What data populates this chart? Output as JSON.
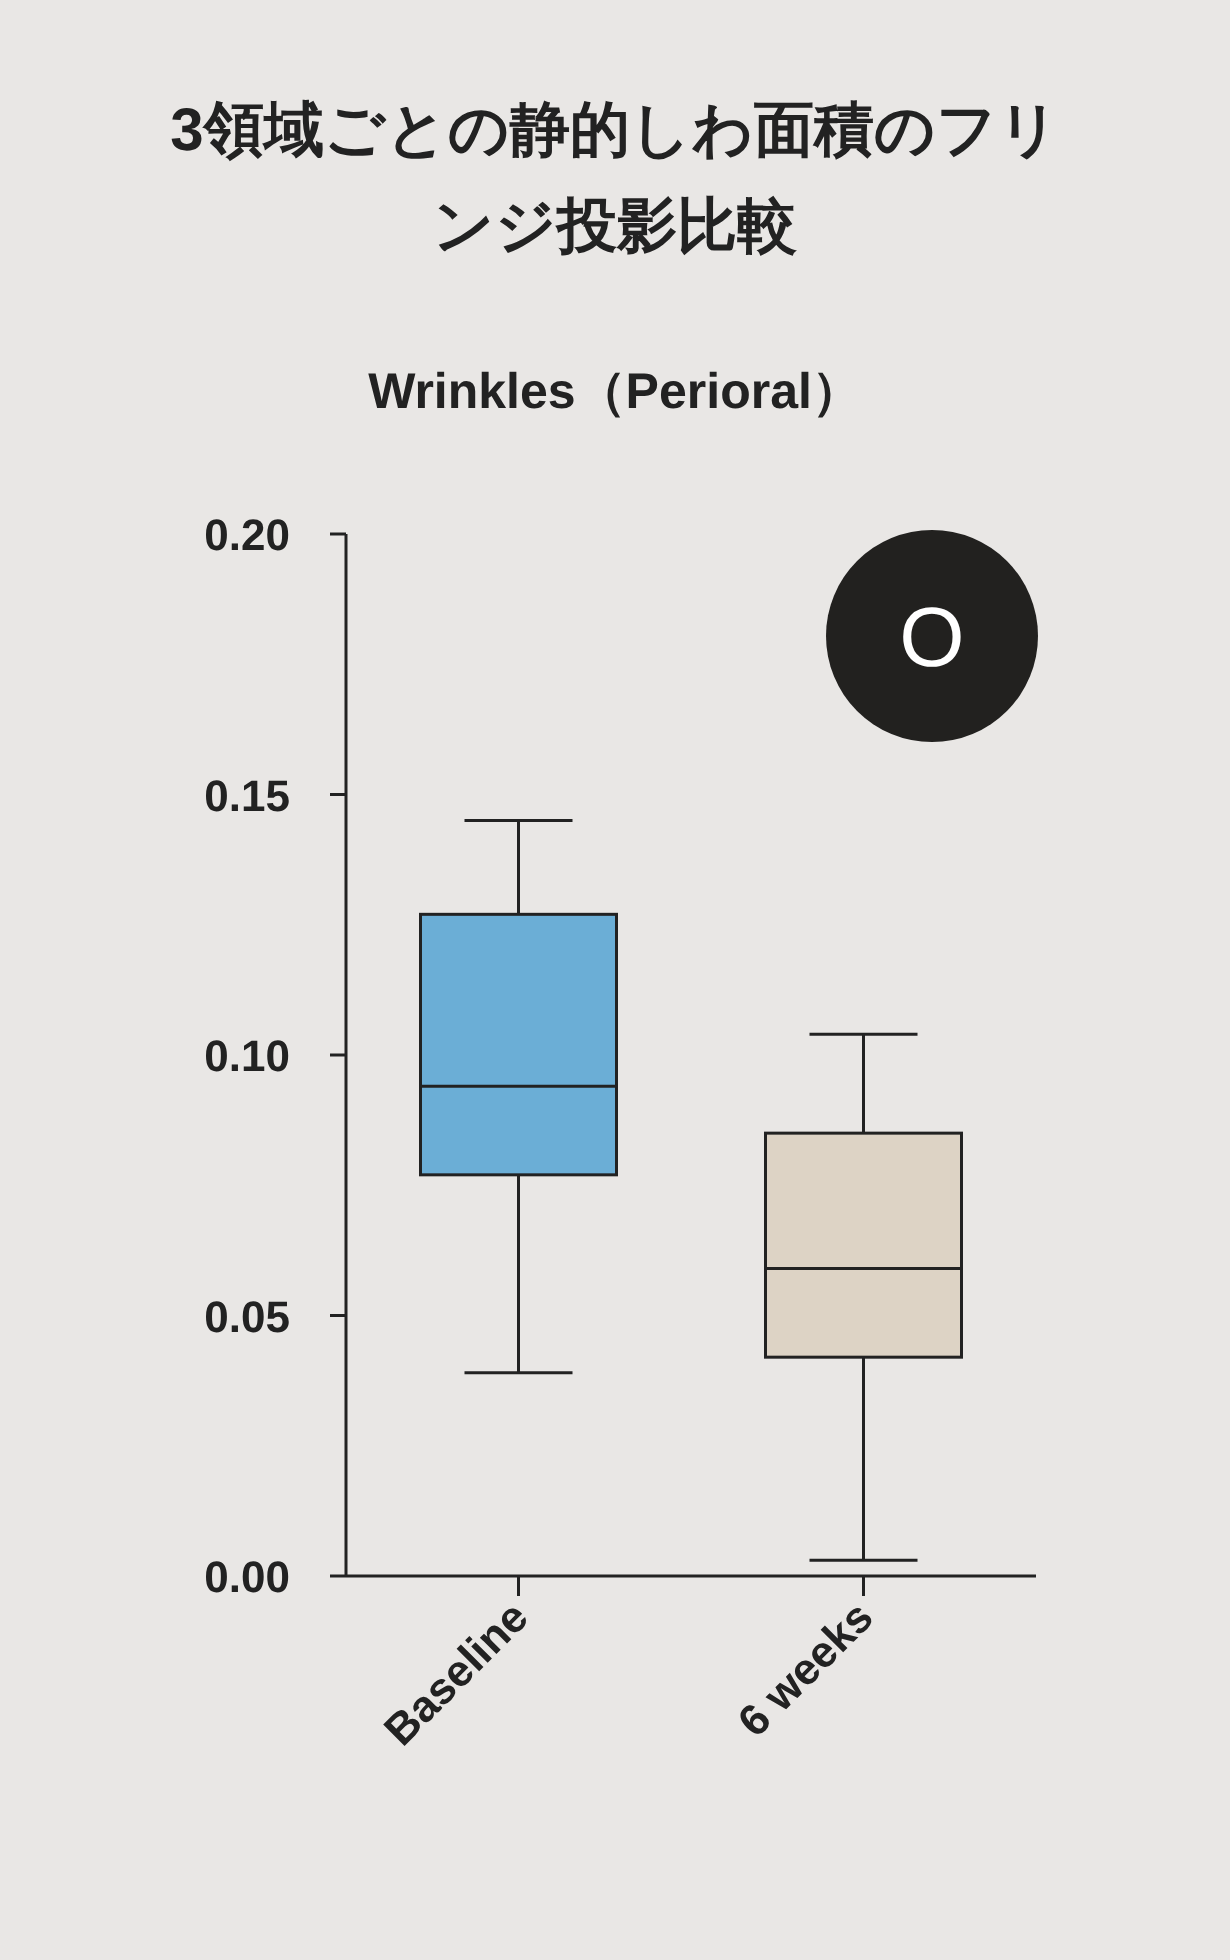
{
  "chart_data": {
    "type": "box",
    "title": "3領域ごとの静的しわ面積のフリンジ投影比較",
    "subtitle": "Wrinkles（Perioral）",
    "categories": [
      "Baseline",
      "6 weeks"
    ],
    "colors": [
      "#6baed6",
      "#ddd3c5"
    ],
    "boxes": [
      {
        "low": 0.039,
        "q1": 0.077,
        "median": 0.094,
        "q3": 0.127,
        "high": 0.145
      },
      {
        "low": 0.003,
        "q1": 0.042,
        "median": 0.059,
        "q3": 0.085,
        "high": 0.104
      }
    ],
    "ylim": [
      0,
      0.2
    ],
    "yticks": [
      {
        "value": 0,
        "label": "0.00"
      },
      {
        "value": 0.05,
        "label": "0.05"
      },
      {
        "value": 0.1,
        "label": "0.10"
      },
      {
        "value": 0.15,
        "label": "0.15"
      },
      {
        "value": 0.2,
        "label": "0.20"
      }
    ],
    "annotations": [
      "O"
    ]
  }
}
